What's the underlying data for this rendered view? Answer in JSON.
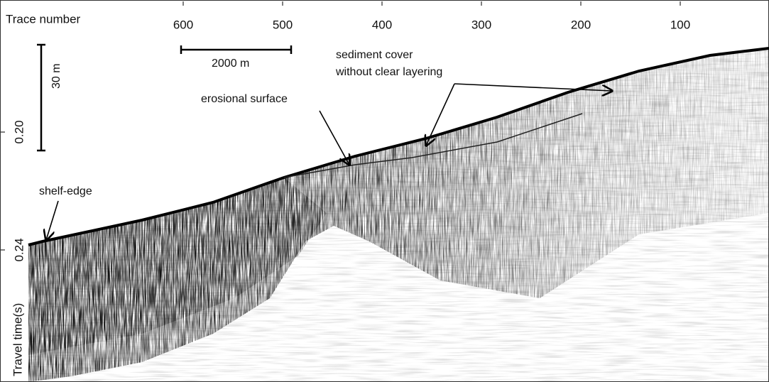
{
  "x_axis": {
    "title": "Trace number",
    "ticks": [
      600,
      500,
      400,
      300,
      200,
      100
    ]
  },
  "y_axis": {
    "title": "Travel time(s)",
    "ticks": [
      {
        "value": 0.2,
        "label": "0.20"
      },
      {
        "value": 0.24,
        "label": "0.24"
      }
    ]
  },
  "scale_bars": {
    "horizontal": "2000 m",
    "vertical": "30 m"
  },
  "annotations": {
    "shelf_edge": "shelf-edge",
    "erosional_surface": "erosional surface",
    "sediment_cover": [
      "sediment cover",
      "without clear layering"
    ]
  }
}
